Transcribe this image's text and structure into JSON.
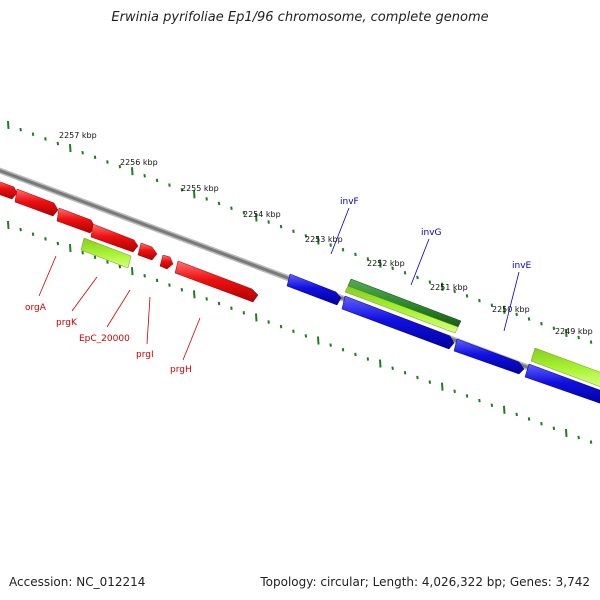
{
  "title": "Erwinia pyrifoliae Ep1/96 chromosome, complete genome",
  "footer": {
    "accession": "Accession: NC_012214",
    "stats": "Topology: circular; Length: 4,026,322 bp; Genes: 3,742"
  },
  "colors": {
    "backbone": "#7a7a7a",
    "tick": "#1e7d1e",
    "red_gene": "#ee1111",
    "blue_gene": "#1010e0",
    "lime_gene": "#a6f230",
    "green_gene": "#2e8b2e",
    "red_label": "#cc0000",
    "blue_label": "#0000bb"
  },
  "kbp_labels": [
    "2257 kbp",
    "2256 kbp",
    "2255 kbp",
    "2254 kbp",
    "2253 kbp",
    "2252 kbp",
    "2251 kbp",
    "2250 kbp",
    "2249 kbp"
  ],
  "features": [
    {
      "id": "f1",
      "color": "red"
    },
    {
      "id": "f2",
      "color": "red"
    },
    {
      "id": "f3",
      "color": "red"
    },
    {
      "id": "f4",
      "color": "red"
    },
    {
      "id": "f5",
      "color": "lime"
    },
    {
      "id": "f6",
      "color": "red"
    },
    {
      "id": "f7",
      "color": "red"
    },
    {
      "id": "f8",
      "color": "red"
    },
    {
      "id": "f9",
      "color": "blue"
    },
    {
      "id": "f10",
      "color": "green"
    },
    {
      "id": "f11",
      "color": "lime"
    },
    {
      "id": "f12",
      "color": "blue"
    },
    {
      "id": "f13",
      "color": "blue"
    },
    {
      "id": "f14",
      "color": "lime"
    },
    {
      "id": "f15",
      "color": "blue"
    }
  ],
  "gene_labels": {
    "orgA": "orgA",
    "prgK": "prgK",
    "EpC_20000": "EpC_20000",
    "prgI": "prgI",
    "prgH": "prgH",
    "invF": "invF",
    "invG": "invG",
    "invE": "invE"
  }
}
